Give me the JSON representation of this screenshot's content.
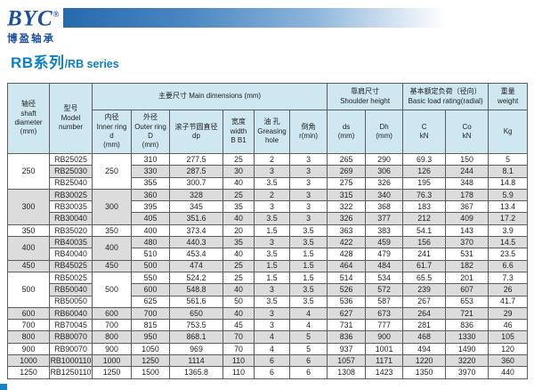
{
  "brand": {
    "logo": "BYC",
    "registered": "®",
    "name_cn": "博盈轴承"
  },
  "title": {
    "cn": "RB系列",
    "en": "/RB series"
  },
  "colors": {
    "accent_blue": "#0e7fc6",
    "logo_blue": "#1c4f9d",
    "bar_gradient_start": "#2769ae",
    "table_header_bg": "#cfe7f1",
    "row_alt_bg": "#dcdcdc",
    "border": "#5d5d5d"
  },
  "table": {
    "group_headers": {
      "shaft": "轴径\nshaft\ndiameter\n(mm)",
      "model": "型号\nModel\nnumber",
      "main_dimensions": "主要尺寸 Main dimensions (mm)",
      "shoulder_height": "靠肩尺寸\nShoulder height",
      "load_rating": "基本额定负荷（径向）\nBasic load rating(radial)",
      "weight": "重量\nweight"
    },
    "sub_headers": {
      "inner": "内径\nInner ring\nd\n(mm)",
      "outer": "外径\nOuter ring\nD\n(mm)",
      "dp": "滚子节圆直径\ndp",
      "width": "宽度\nwidth\nB B1",
      "grease": "油 孔\nGreasing\nhole",
      "chamfer": "倒角\nr(min)",
      "ds": "ds\n(mm)",
      "dh": "Dh\n(mm)",
      "c": "C\nkN",
      "co": "Co\nkN",
      "kg": "Kg"
    },
    "groups": [
      {
        "shaft": "250",
        "inner": "250",
        "rows": [
          {
            "model": "RB25025",
            "outer": "310",
            "dp": "277.5",
            "width": "25",
            "grease": "2",
            "chamfer": "3",
            "ds": "265",
            "dh": "290",
            "c": "69.3",
            "co": "150",
            "kg": "5"
          },
          {
            "model": "RB25030",
            "outer": "330",
            "dp": "287.5",
            "width": "30",
            "grease": "3",
            "chamfer": "3",
            "ds": "269",
            "dh": "306",
            "c": "126",
            "co": "244",
            "kg": "8.1"
          },
          {
            "model": "RB25040",
            "outer": "355",
            "dp": "300.7",
            "width": "40",
            "grease": "3.5",
            "chamfer": "3",
            "ds": "275",
            "dh": "326",
            "c": "195",
            "co": "348",
            "kg": "14.8"
          }
        ]
      },
      {
        "shaft": "300",
        "inner": "300",
        "rows": [
          {
            "model": "RB30025",
            "outer": "360",
            "dp": "328",
            "width": "25",
            "grease": "2",
            "chamfer": "3",
            "ds": "315",
            "dh": "340",
            "c": "76.3",
            "co": "178",
            "kg": "5.9"
          },
          {
            "model": "RB30035",
            "outer": "395",
            "dp": "345",
            "width": "35",
            "grease": "3",
            "chamfer": "3",
            "ds": "322",
            "dh": "368",
            "c": "183",
            "co": "367",
            "kg": "13.4"
          },
          {
            "model": "RB30040",
            "outer": "405",
            "dp": "351.6",
            "width": "40",
            "grease": "3.5",
            "chamfer": "3",
            "ds": "326",
            "dh": "377",
            "c": "212",
            "co": "409",
            "kg": "17.2"
          }
        ]
      },
      {
        "shaft": "350",
        "inner": "350",
        "rows": [
          {
            "model": "RB35020",
            "outer": "400",
            "dp": "373.4",
            "width": "20",
            "grease": "1.5",
            "chamfer": "3.5",
            "ds": "363",
            "dh": "383",
            "c": "54.1",
            "co": "143",
            "kg": "3.9"
          }
        ]
      },
      {
        "shaft": "400",
        "inner": "400",
        "rows": [
          {
            "model": "RB40035",
            "outer": "480",
            "dp": "440.3",
            "width": "35",
            "grease": "3",
            "chamfer": "3.5",
            "ds": "422",
            "dh": "459",
            "c": "156",
            "co": "370",
            "kg": "14.5"
          },
          {
            "model": "RB40040",
            "outer": "510",
            "dp": "453.4",
            "width": "40",
            "grease": "3.5",
            "chamfer": "1.5",
            "ds": "428",
            "dh": "479",
            "c": "241",
            "co": "531",
            "kg": "23.5"
          }
        ]
      },
      {
        "shaft": "450",
        "inner": "450",
        "rows": [
          {
            "model": "RB45025",
            "outer": "500",
            "dp": "474",
            "width": "25",
            "grease": "1.5",
            "chamfer": "1.5",
            "ds": "464",
            "dh": "484",
            "c": "61.7",
            "co": "182",
            "kg": "6.6"
          }
        ]
      },
      {
        "shaft": "500",
        "inner": "500",
        "rows": [
          {
            "model": "RB50025",
            "outer": "550",
            "dp": "524.2",
            "width": "25",
            "grease": "1.5",
            "chamfer": "1.5",
            "ds": "514",
            "dh": "534",
            "c": "65.5",
            "co": "201",
            "kg": "7.3"
          },
          {
            "model": "RB50040",
            "outer": "600",
            "dp": "548.8",
            "width": "40",
            "grease": "3",
            "chamfer": "3.5",
            "ds": "526",
            "dh": "572",
            "c": "239",
            "co": "607",
            "kg": "26"
          },
          {
            "model": "RB50050",
            "outer": "625",
            "dp": "561.6",
            "width": "50",
            "grease": "3.5",
            "chamfer": "3.5",
            "ds": "536",
            "dh": "587",
            "c": "267",
            "co": "653",
            "kg": "41.7"
          }
        ]
      },
      {
        "shaft": "600",
        "inner": "600",
        "rows": [
          {
            "model": "RB60040",
            "outer": "700",
            "dp": "650",
            "width": "40",
            "grease": "3",
            "chamfer": "4",
            "ds": "627",
            "dh": "673",
            "c": "264",
            "co": "721",
            "kg": "29"
          }
        ]
      },
      {
        "shaft": "700",
        "inner": "700",
        "rows": [
          {
            "model": "RB70045",
            "outer": "815",
            "dp": "753.5",
            "width": "45",
            "grease": "3",
            "chamfer": "4",
            "ds": "731",
            "dh": "777",
            "c": "281",
            "co": "836",
            "kg": "46"
          }
        ]
      },
      {
        "shaft": "800",
        "inner": "800",
        "rows": [
          {
            "model": "RB80070",
            "outer": "950",
            "dp": "868.1",
            "width": "70",
            "grease": "4",
            "chamfer": "5",
            "ds": "836",
            "dh": "900",
            "c": "468",
            "co": "1330",
            "kg": "105"
          }
        ]
      },
      {
        "shaft": "900",
        "inner": "900",
        "rows": [
          {
            "model": "RB90070",
            "outer": "1050",
            "dp": "969",
            "width": "70",
            "grease": "4",
            "chamfer": "5",
            "ds": "937",
            "dh": "1001",
            "c": "494",
            "co": "1490",
            "kg": "120"
          }
        ]
      },
      {
        "shaft": "1000",
        "inner": "1000",
        "rows": [
          {
            "model": "RB1000110",
            "outer": "1250",
            "dp": "1114",
            "width": "110",
            "grease": "6",
            "chamfer": "6",
            "ds": "1057",
            "dh": "1171",
            "c": "1220",
            "co": "3220",
            "kg": "360"
          }
        ]
      },
      {
        "shaft": "1250",
        "inner": "1250",
        "rows": [
          {
            "model": "RB1250110",
            "outer": "1500",
            "dp": "1365.8",
            "width": "110",
            "grease": "6",
            "chamfer": "6",
            "ds": "1308",
            "dh": "1423",
            "c": "1350",
            "co": "3970",
            "kg": "440"
          }
        ]
      }
    ]
  }
}
